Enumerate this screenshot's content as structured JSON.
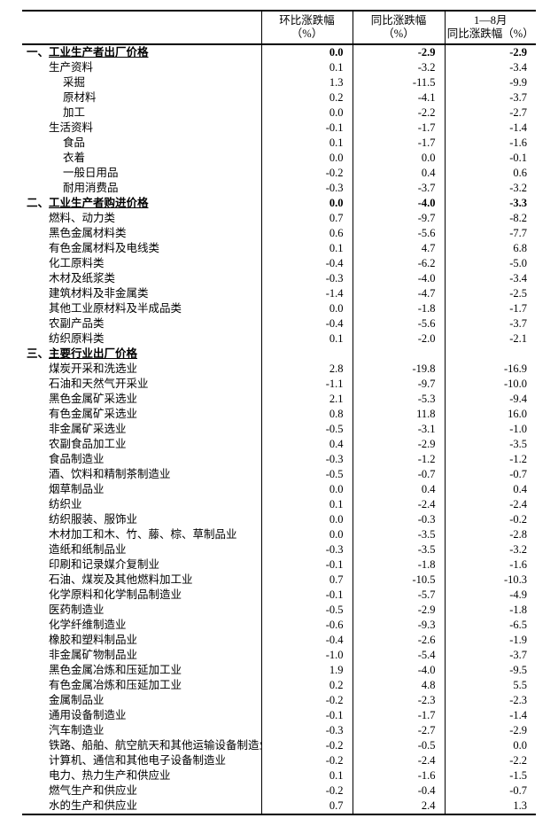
{
  "table": {
    "columns": [
      {
        "id": "mom",
        "line1": "环比涨跌幅",
        "line2": "（%）"
      },
      {
        "id": "yoy",
        "line1": "同比涨跌幅",
        "line2": "（%）"
      },
      {
        "id": "ytd",
        "line1": "1—8月",
        "line2": "同比涨跌幅（%）"
      }
    ],
    "rows": [
      {
        "prefix": "一、",
        "label": "工业生产者出厂价格",
        "indent": 0,
        "section": true,
        "values": [
          "0.0",
          "-2.9",
          "-2.9"
        ]
      },
      {
        "prefix": "",
        "label": "生产资料",
        "indent": 1,
        "section": false,
        "values": [
          "0.1",
          "-3.2",
          "-3.4"
        ]
      },
      {
        "prefix": "",
        "label": "采掘",
        "indent": 2,
        "section": false,
        "values": [
          "1.3",
          "-11.5",
          "-9.9"
        ]
      },
      {
        "prefix": "",
        "label": "原材料",
        "indent": 2,
        "section": false,
        "values": [
          "0.2",
          "-4.1",
          "-3.7"
        ]
      },
      {
        "prefix": "",
        "label": "加工",
        "indent": 2,
        "section": false,
        "values": [
          "0.0",
          "-2.2",
          "-2.7"
        ]
      },
      {
        "prefix": "",
        "label": "生活资料",
        "indent": 1,
        "section": false,
        "values": [
          "-0.1",
          "-1.7",
          "-1.4"
        ]
      },
      {
        "prefix": "",
        "label": "食品",
        "indent": 2,
        "section": false,
        "values": [
          "0.1",
          "-1.7",
          "-1.6"
        ]
      },
      {
        "prefix": "",
        "label": "衣着",
        "indent": 2,
        "section": false,
        "values": [
          "0.0",
          "0.0",
          "-0.1"
        ]
      },
      {
        "prefix": "",
        "label": "一般日用品",
        "indent": 2,
        "section": false,
        "values": [
          "-0.2",
          "0.4",
          "0.6"
        ]
      },
      {
        "prefix": "",
        "label": "耐用消费品",
        "indent": 2,
        "section": false,
        "values": [
          "-0.3",
          "-3.7",
          "-3.2"
        ]
      },
      {
        "prefix": "二、",
        "label": "工业生产者购进价格",
        "indent": 0,
        "section": true,
        "values": [
          "0.0",
          "-4.0",
          "-3.3"
        ]
      },
      {
        "prefix": "",
        "label": "燃料、动力类",
        "indent": 1,
        "section": false,
        "values": [
          "0.7",
          "-9.7",
          "-8.2"
        ]
      },
      {
        "prefix": "",
        "label": "黑色金属材料类",
        "indent": 1,
        "section": false,
        "values": [
          "0.6",
          "-5.6",
          "-7.7"
        ]
      },
      {
        "prefix": "",
        "label": "有色金属材料及电线类",
        "indent": 1,
        "section": false,
        "values": [
          "0.1",
          "4.7",
          "6.8"
        ]
      },
      {
        "prefix": "",
        "label": "化工原料类",
        "indent": 1,
        "section": false,
        "values": [
          "-0.4",
          "-6.2",
          "-5.0"
        ]
      },
      {
        "prefix": "",
        "label": "木材及纸浆类",
        "indent": 1,
        "section": false,
        "values": [
          "-0.3",
          "-4.0",
          "-3.4"
        ]
      },
      {
        "prefix": "",
        "label": "建筑材料及非金属类",
        "indent": 1,
        "section": false,
        "values": [
          "-1.4",
          "-4.7",
          "-2.5"
        ]
      },
      {
        "prefix": "",
        "label": "其他工业原材料及半成品类",
        "indent": 1,
        "section": false,
        "values": [
          "0.0",
          "-1.8",
          "-1.7"
        ]
      },
      {
        "prefix": "",
        "label": "农副产品类",
        "indent": 1,
        "section": false,
        "values": [
          "-0.4",
          "-5.6",
          "-3.7"
        ]
      },
      {
        "prefix": "",
        "label": "纺织原料类",
        "indent": 1,
        "section": false,
        "values": [
          "0.1",
          "-2.0",
          "-2.1"
        ]
      },
      {
        "prefix": "三、",
        "label": "主要行业出厂价格",
        "indent": 0,
        "section": true,
        "values": [
          "",
          "",
          ""
        ]
      },
      {
        "prefix": "",
        "label": "煤炭开采和洗选业",
        "indent": 1,
        "section": false,
        "values": [
          "2.8",
          "-19.8",
          "-16.9"
        ]
      },
      {
        "prefix": "",
        "label": "石油和天然气开采业",
        "indent": 1,
        "section": false,
        "values": [
          "-1.1",
          "-9.7",
          "-10.0"
        ]
      },
      {
        "prefix": "",
        "label": "黑色金属矿采选业",
        "indent": 1,
        "section": false,
        "values": [
          "2.1",
          "-5.3",
          "-9.4"
        ]
      },
      {
        "prefix": "",
        "label": "有色金属矿采选业",
        "indent": 1,
        "section": false,
        "values": [
          "0.8",
          "11.8",
          "16.0"
        ]
      },
      {
        "prefix": "",
        "label": "非金属矿采选业",
        "indent": 1,
        "section": false,
        "values": [
          "-0.5",
          "-3.1",
          "-1.0"
        ]
      },
      {
        "prefix": "",
        "label": "农副食品加工业",
        "indent": 1,
        "section": false,
        "values": [
          "0.4",
          "-2.9",
          "-3.5"
        ]
      },
      {
        "prefix": "",
        "label": "食品制造业",
        "indent": 1,
        "section": false,
        "values": [
          "-0.3",
          "-1.2",
          "-1.2"
        ]
      },
      {
        "prefix": "",
        "label": "酒、饮料和精制茶制造业",
        "indent": 1,
        "section": false,
        "values": [
          "-0.5",
          "-0.7",
          "-0.7"
        ]
      },
      {
        "prefix": "",
        "label": "烟草制品业",
        "indent": 1,
        "section": false,
        "values": [
          "0.0",
          "0.4",
          "0.4"
        ]
      },
      {
        "prefix": "",
        "label": "纺织业",
        "indent": 1,
        "section": false,
        "values": [
          "0.1",
          "-2.4",
          "-2.4"
        ]
      },
      {
        "prefix": "",
        "label": "纺织服装、服饰业",
        "indent": 1,
        "section": false,
        "values": [
          "0.0",
          "-0.3",
          "-0.2"
        ]
      },
      {
        "prefix": "",
        "label": "木材加工和木、竹、藤、棕、草制品业",
        "indent": 1,
        "section": false,
        "values": [
          "0.0",
          "-3.5",
          "-2.8"
        ]
      },
      {
        "prefix": "",
        "label": "造纸和纸制品业",
        "indent": 1,
        "section": false,
        "values": [
          "-0.3",
          "-3.5",
          "-3.2"
        ]
      },
      {
        "prefix": "",
        "label": "印刷和记录媒介复制业",
        "indent": 1,
        "section": false,
        "values": [
          "-0.1",
          "-1.8",
          "-1.6"
        ]
      },
      {
        "prefix": "",
        "label": "石油、煤炭及其他燃料加工业",
        "indent": 1,
        "section": false,
        "values": [
          "0.7",
          "-10.5",
          "-10.3"
        ]
      },
      {
        "prefix": "",
        "label": "化学原料和化学制品制造业",
        "indent": 1,
        "section": false,
        "values": [
          "-0.1",
          "-5.7",
          "-4.9"
        ]
      },
      {
        "prefix": "",
        "label": "医药制造业",
        "indent": 1,
        "section": false,
        "values": [
          "-0.5",
          "-2.9",
          "-1.8"
        ]
      },
      {
        "prefix": "",
        "label": "化学纤维制造业",
        "indent": 1,
        "section": false,
        "values": [
          "-0.6",
          "-9.3",
          "-6.5"
        ]
      },
      {
        "prefix": "",
        "label": "橡胶和塑料制品业",
        "indent": 1,
        "section": false,
        "values": [
          "-0.4",
          "-2.6",
          "-1.9"
        ]
      },
      {
        "prefix": "",
        "label": "非金属矿物制品业",
        "indent": 1,
        "section": false,
        "values": [
          "-1.0",
          "-5.4",
          "-3.7"
        ]
      },
      {
        "prefix": "",
        "label": "黑色金属冶炼和压延加工业",
        "indent": 1,
        "section": false,
        "values": [
          "1.9",
          "-4.0",
          "-9.5"
        ]
      },
      {
        "prefix": "",
        "label": "有色金属冶炼和压延加工业",
        "indent": 1,
        "section": false,
        "values": [
          "0.2",
          "4.8",
          "5.5"
        ]
      },
      {
        "prefix": "",
        "label": "金属制品业",
        "indent": 1,
        "section": false,
        "values": [
          "-0.2",
          "-2.3",
          "-2.3"
        ]
      },
      {
        "prefix": "",
        "label": "通用设备制造业",
        "indent": 1,
        "section": false,
        "values": [
          "-0.1",
          "-1.7",
          "-1.4"
        ]
      },
      {
        "prefix": "",
        "label": "汽车制造业",
        "indent": 1,
        "section": false,
        "values": [
          "-0.3",
          "-2.7",
          "-2.9"
        ]
      },
      {
        "prefix": "",
        "label": "铁路、船舶、航空航天和其他运输设备制造业",
        "indent": 1,
        "section": false,
        "values": [
          "-0.2",
          "-0.5",
          "0.0"
        ]
      },
      {
        "prefix": "",
        "label": "计算机、通信和其他电子设备制造业",
        "indent": 1,
        "section": false,
        "values": [
          "-0.2",
          "-2.4",
          "-2.2"
        ]
      },
      {
        "prefix": "",
        "label": "电力、热力生产和供应业",
        "indent": 1,
        "section": false,
        "values": [
          "0.1",
          "-1.6",
          "-1.5"
        ]
      },
      {
        "prefix": "",
        "label": "燃气生产和供应业",
        "indent": 1,
        "section": false,
        "values": [
          "-0.2",
          "-0.4",
          "-0.7"
        ]
      },
      {
        "prefix": "",
        "label": "水的生产和供应业",
        "indent": 1,
        "section": false,
        "values": [
          "0.7",
          "2.4",
          "1.3"
        ]
      }
    ]
  }
}
